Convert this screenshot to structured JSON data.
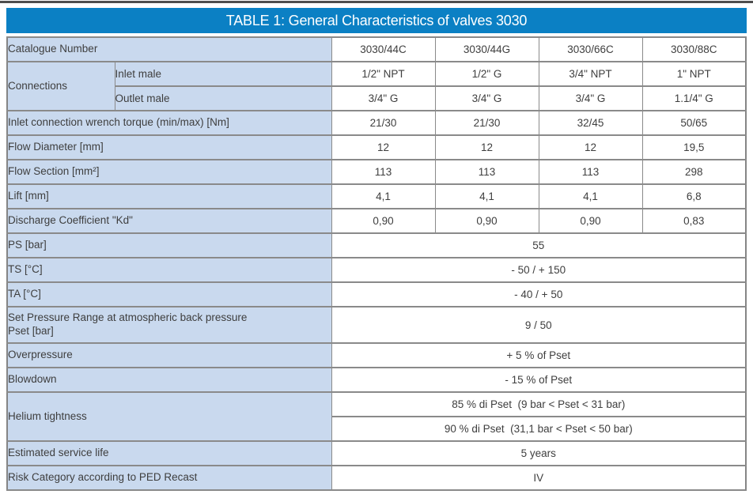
{
  "colors": {
    "header_bg": "#0b80c4",
    "header_text": "#ffffff",
    "label_cell_bg": "#c9d9ee",
    "border": "#8a8a8a",
    "top_rule": "#4e4e4e",
    "text": "#3e3e3e"
  },
  "table": {
    "title": "TABLE 1: General Characteristics of valves 3030",
    "catalogue_numbers": [
      "3030/44C",
      "3030/44G",
      "3030/66C",
      "3030/88C"
    ],
    "rows": [
      {
        "cells": [
          {
            "kind": "label",
            "cs": 2,
            "text": "Catalogue Number"
          },
          {
            "kind": "val",
            "text": "3030/44C"
          },
          {
            "kind": "val",
            "text": "3030/44G"
          },
          {
            "kind": "val",
            "text": "3030/66C"
          },
          {
            "kind": "val",
            "text": "3030/88C"
          }
        ]
      },
      {
        "cells": [
          {
            "kind": "label",
            "rs": 2,
            "text": "Connections"
          },
          {
            "kind": "sub",
            "text": "Inlet male"
          },
          {
            "kind": "val",
            "text": "1/2\" NPT"
          },
          {
            "kind": "val",
            "text": "1/2\" G"
          },
          {
            "kind": "val",
            "text": "3/4\" NPT"
          },
          {
            "kind": "val",
            "text": "1\" NPT"
          }
        ]
      },
      {
        "cells": [
          {
            "kind": "sub",
            "text": "Outlet male"
          },
          {
            "kind": "val",
            "text": "3/4\" G"
          },
          {
            "kind": "val",
            "text": "3/4\" G"
          },
          {
            "kind": "val",
            "text": "3/4\" G"
          },
          {
            "kind": "val",
            "text": "1.1/4\" G"
          }
        ]
      },
      {
        "cells": [
          {
            "kind": "label",
            "cs": 2,
            "text": "Inlet connection wrench torque (min/max) [Nm]"
          },
          {
            "kind": "val",
            "text": "21/30"
          },
          {
            "kind": "val",
            "text": "21/30"
          },
          {
            "kind": "val",
            "text": "32/45"
          },
          {
            "kind": "val",
            "text": "50/65"
          }
        ]
      },
      {
        "cells": [
          {
            "kind": "label",
            "cs": 2,
            "text": "Flow Diameter [mm]"
          },
          {
            "kind": "val",
            "text": "12"
          },
          {
            "kind": "val",
            "text": "12"
          },
          {
            "kind": "val",
            "text": "12"
          },
          {
            "kind": "val",
            "text": "19,5"
          }
        ]
      },
      {
        "cells": [
          {
            "kind": "label",
            "cs": 2,
            "text": "Flow Section [mm²]"
          },
          {
            "kind": "val",
            "text": "113"
          },
          {
            "kind": "val",
            "text": "113"
          },
          {
            "kind": "val",
            "text": "113"
          },
          {
            "kind": "val",
            "text": "298"
          }
        ]
      },
      {
        "cells": [
          {
            "kind": "label",
            "cs": 2,
            "text": "Lift [mm]"
          },
          {
            "kind": "val",
            "text": "4,1"
          },
          {
            "kind": "val",
            "text": "4,1"
          },
          {
            "kind": "val",
            "text": "4,1"
          },
          {
            "kind": "val",
            "text": "6,8"
          }
        ]
      },
      {
        "cells": [
          {
            "kind": "label",
            "cs": 2,
            "text": "Discharge Coefficient \"Kd\""
          },
          {
            "kind": "val",
            "text": "0,90"
          },
          {
            "kind": "val",
            "text": "0,90"
          },
          {
            "kind": "val",
            "text": "0,90"
          },
          {
            "kind": "val",
            "text": "0,83"
          }
        ]
      },
      {
        "cells": [
          {
            "kind": "label",
            "cs": 2,
            "text": "PS [bar]"
          },
          {
            "kind": "val",
            "cs": 4,
            "text": "55"
          }
        ]
      },
      {
        "cells": [
          {
            "kind": "label",
            "cs": 2,
            "text": "TS [°C]"
          },
          {
            "kind": "val",
            "cs": 4,
            "text": "- 50 / + 150"
          }
        ]
      },
      {
        "cells": [
          {
            "kind": "label",
            "cs": 2,
            "text": "TA [°C]"
          },
          {
            "kind": "val",
            "cs": 4,
            "text": "- 40 / + 50"
          }
        ]
      },
      {
        "cells": [
          {
            "kind": "label",
            "cs": 2,
            "text": "Set Pressure Range at atmospheric back pressure\nPset [bar]"
          },
          {
            "kind": "val",
            "cs": 4,
            "text": "9 / 50"
          }
        ]
      },
      {
        "cells": [
          {
            "kind": "label",
            "cs": 2,
            "text": "Overpressure"
          },
          {
            "kind": "val",
            "cs": 4,
            "text": "+ 5 % of Pset"
          }
        ]
      },
      {
        "cells": [
          {
            "kind": "label",
            "cs": 2,
            "text": "Blowdown"
          },
          {
            "kind": "val",
            "cs": 4,
            "text": "- 15 % of Pset"
          }
        ]
      },
      {
        "cells": [
          {
            "kind": "label",
            "cs": 2,
            "rs": 2,
            "text": "Helium tightness"
          },
          {
            "kind": "val",
            "cs": 4,
            "text": "85 % di Pset  (9 bar < Pset < 31 bar)"
          }
        ]
      },
      {
        "cells": [
          {
            "kind": "val",
            "cs": 4,
            "text": "90 % di Pset  (31,1 bar < Pset < 50 bar)"
          }
        ]
      },
      {
        "cells": [
          {
            "kind": "label",
            "cs": 2,
            "text": "Estimated service life"
          },
          {
            "kind": "val",
            "cs": 4,
            "text": "5 years"
          }
        ]
      },
      {
        "cells": [
          {
            "kind": "label",
            "cs": 2,
            "text": "Risk Category according to PED Recast"
          },
          {
            "kind": "val",
            "cs": 4,
            "text": "IV"
          }
        ]
      }
    ]
  }
}
